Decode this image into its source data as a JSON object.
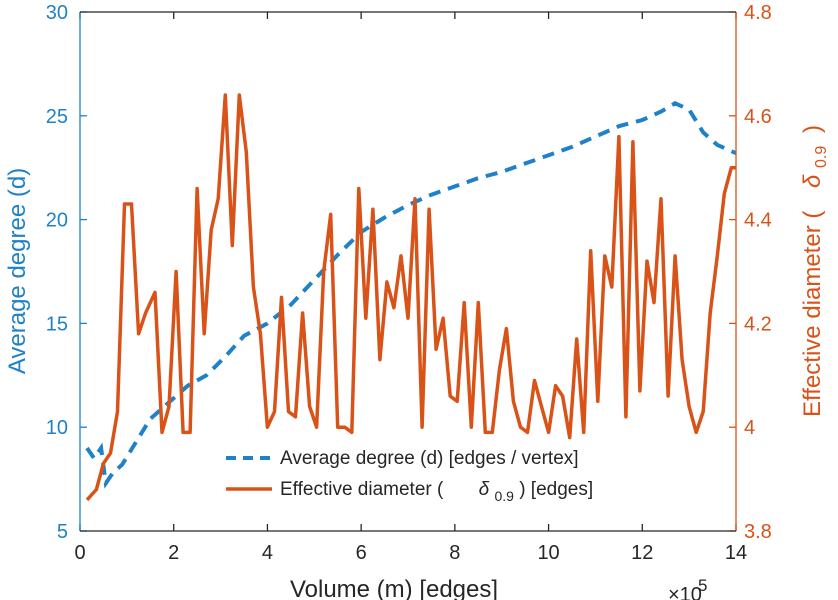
{
  "chart_data": {
    "type": "line",
    "xlabel": "Volume (m) [edges]",
    "x_multiplier": "×10",
    "x_multiplier_exponent": "5",
    "xlim": [
      0,
      14
    ],
    "xticks": [
      "0",
      "2",
      "4",
      "6",
      "8",
      "10",
      "12",
      "14"
    ],
    "left_axis": {
      "label": "Average degree (d)",
      "ylim": [
        5,
        30
      ],
      "ticks": [
        "5",
        "10",
        "15",
        "20",
        "25",
        "30"
      ],
      "color": "#1f82c8"
    },
    "right_axis": {
      "label_prefix": "Effective diameter (",
      "label_symbol": "δ",
      "label_sub": "0.9",
      "label_suffix": ")",
      "ylim": [
        3.8,
        4.8
      ],
      "ticks": [
        "3.8",
        "4",
        "4.2",
        "4.4",
        "4.6",
        "4.8"
      ],
      "color": "#d95319"
    },
    "series": [
      {
        "name": "Average degree (d) [edges / vertex]",
        "axis": "left",
        "style": "dashed",
        "color": "#1f82c8",
        "x": [
          0.15,
          0.3,
          0.45,
          0.55,
          0.7,
          0.9,
          1.2,
          1.5,
          1.9,
          2.3,
          2.7,
          3.1,
          3.5,
          4.0,
          4.5,
          5.0,
          5.5,
          6.0,
          6.5,
          7.0,
          7.5,
          8.0,
          8.5,
          9.0,
          9.5,
          10.0,
          10.5,
          11.0,
          11.5,
          12.0,
          12.4,
          12.7,
          13.0,
          13.3,
          13.6,
          14.0
        ],
        "values": [
          9.0,
          8.5,
          9.0,
          7.3,
          7.8,
          8.2,
          9.3,
          10.4,
          11.2,
          12.0,
          12.5,
          13.4,
          14.4,
          15.0,
          15.9,
          17.1,
          18.3,
          19.4,
          20.1,
          20.7,
          21.2,
          21.6,
          22.0,
          22.3,
          22.7,
          23.1,
          23.5,
          24.0,
          24.5,
          24.8,
          25.2,
          25.6,
          25.3,
          24.2,
          23.6,
          23.2
        ]
      },
      {
        "name_prefix": "Effective diameter (",
        "name_symbol": "δ",
        "name_sub": "0.9",
        "name_suffix": ") [edges]",
        "axis": "right",
        "style": "solid",
        "color": "#d95319",
        "x": [
          0.15,
          0.35,
          0.5,
          0.65,
          0.8,
          0.95,
          1.1,
          1.25,
          1.4,
          1.6,
          1.75,
          1.9,
          2.05,
          2.2,
          2.35,
          2.5,
          2.65,
          2.8,
          2.95,
          3.1,
          3.25,
          3.4,
          3.55,
          3.7,
          3.85,
          4.0,
          4.15,
          4.3,
          4.45,
          4.6,
          4.75,
          4.9,
          5.05,
          5.2,
          5.35,
          5.5,
          5.65,
          5.8,
          5.95,
          6.1,
          6.25,
          6.4,
          6.55,
          6.7,
          6.85,
          7.0,
          7.15,
          7.3,
          7.45,
          7.6,
          7.75,
          7.9,
          8.05,
          8.2,
          8.35,
          8.5,
          8.65,
          8.8,
          8.95,
          9.1,
          9.25,
          9.4,
          9.55,
          9.7,
          9.85,
          10.0,
          10.15,
          10.3,
          10.45,
          10.6,
          10.75,
          10.9,
          11.05,
          11.2,
          11.35,
          11.5,
          11.65,
          11.8,
          11.95,
          12.1,
          12.25,
          12.4,
          12.55,
          12.7,
          12.85,
          13.0,
          13.15,
          13.3,
          13.45,
          13.6,
          13.75,
          13.9,
          14.0
        ],
        "values": [
          3.86,
          3.88,
          3.93,
          3.95,
          4.03,
          4.43,
          4.43,
          4.18,
          4.22,
          4.26,
          3.99,
          4.04,
          4.3,
          3.99,
          3.99,
          4.46,
          4.18,
          4.38,
          4.44,
          4.64,
          4.35,
          4.64,
          4.53,
          4.27,
          4.18,
          4.0,
          4.03,
          4.25,
          4.03,
          4.02,
          4.22,
          4.04,
          4.0,
          4.3,
          4.41,
          4.0,
          4.0,
          3.99,
          4.46,
          4.21,
          4.42,
          4.13,
          4.28,
          4.23,
          4.33,
          4.21,
          4.44,
          4.0,
          4.42,
          4.15,
          4.21,
          4.06,
          4.05,
          4.24,
          4.0,
          4.24,
          3.99,
          3.99,
          4.11,
          4.19,
          4.05,
          4.0,
          3.99,
          4.09,
          4.04,
          3.99,
          4.08,
          4.06,
          3.98,
          4.17,
          3.99,
          4.34,
          4.05,
          4.33,
          4.27,
          4.56,
          4.02,
          4.55,
          4.07,
          4.32,
          4.24,
          4.44,
          4.06,
          4.33,
          4.13,
          4.04,
          3.99,
          4.03,
          4.22,
          4.33,
          4.45,
          4.5,
          4.5
        ]
      }
    ],
    "legend_position": "bottom-center"
  }
}
